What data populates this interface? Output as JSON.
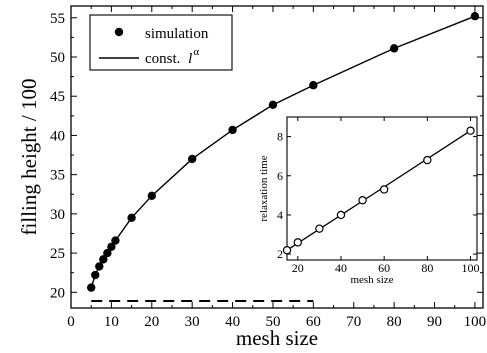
{
  "chart_data": [
    {
      "id": "main",
      "type": "scatter",
      "xlabel": "mesh size",
      "ylabel": "filling height / 100",
      "xlim": [
        0,
        102
      ],
      "ylim": [
        18,
        56.5
      ],
      "xticks": [
        0,
        10,
        20,
        30,
        40,
        50,
        60,
        70,
        80,
        90,
        100
      ],
      "yticks": [
        20,
        25,
        30,
        35,
        40,
        45,
        50,
        55
      ],
      "legend": {
        "placement": "top-left",
        "entries": [
          {
            "label": "simulation",
            "marker": "filled-circle"
          },
          {
            "label": "const. ",
            "label_math": "l",
            "label_sup": "α",
            "marker": "line"
          }
        ]
      },
      "series": [
        {
          "name": "simulation",
          "marker": "filled-circle",
          "x": [
            5,
            6,
            7,
            8,
            9,
            10,
            11,
            15,
            20,
            30,
            40,
            50,
            60,
            80,
            100
          ],
          "y": [
            20.6,
            22.2,
            23.3,
            24.2,
            25.0,
            25.8,
            26.6,
            29.5,
            32.3,
            37.0,
            40.7,
            43.9,
            46.4,
            51.1,
            55.2
          ]
        },
        {
          "name": "const. l^α",
          "style": "line",
          "x": [
            5,
            6,
            7,
            8,
            9,
            10,
            11,
            15,
            20,
            30,
            40,
            50,
            60,
            80,
            100
          ],
          "y": [
            20.6,
            22.2,
            23.3,
            24.2,
            25.0,
            25.8,
            26.6,
            29.5,
            32.3,
            37.0,
            40.7,
            43.9,
            46.4,
            51.1,
            55.2
          ]
        },
        {
          "style": "dashed-line",
          "x": [
            5,
            60
          ],
          "y": [
            18.9,
            18.9
          ]
        }
      ]
    },
    {
      "id": "inset",
      "type": "scatter",
      "xlabel": "mesh size",
      "ylabel": "relaxation time",
      "xlim": [
        15,
        103
      ],
      "ylim": [
        1.7,
        9.0
      ],
      "xticks": [
        20,
        40,
        60,
        80,
        100
      ],
      "yticks": [
        2,
        4,
        6,
        8
      ],
      "series": [
        {
          "marker": "open-circle",
          "x": [
            15,
            20,
            30,
            40,
            50,
            60,
            80,
            100
          ],
          "y": [
            2.2,
            2.6,
            3.3,
            4.0,
            4.75,
            5.3,
            6.8,
            8.3
          ]
        },
        {
          "style": "line",
          "x": [
            15,
            100
          ],
          "y": [
            2.2,
            8.3
          ]
        }
      ]
    }
  ]
}
